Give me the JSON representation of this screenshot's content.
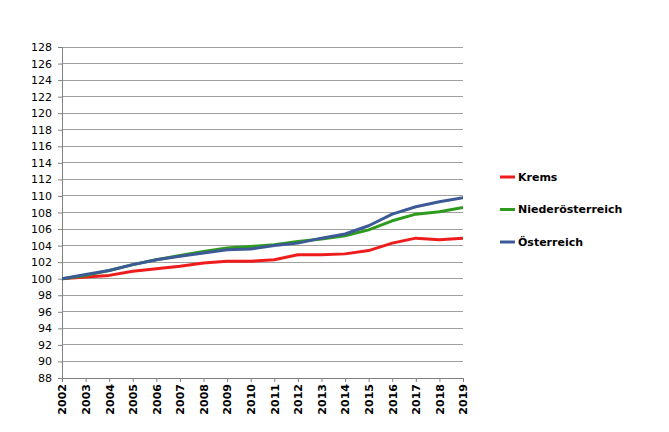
{
  "chart_data": {
    "type": "line",
    "categories": [
      "2002",
      "2003",
      "2004",
      "2005",
      "2006",
      "2007",
      "2008",
      "2009",
      "2010",
      "2011",
      "2012",
      "2013",
      "2014",
      "2015",
      "2016",
      "2017",
      "2018",
      "2019"
    ],
    "series": [
      {
        "name": "Krems",
        "color": "#ee1c1c",
        "values": [
          100,
          100.2,
          100.4,
          100.9,
          101.2,
          101.5,
          101.9,
          102.1,
          102.1,
          102.3,
          102.9,
          102.9,
          103.0,
          103.4,
          104.3,
          104.9,
          104.7,
          104.9
        ]
      },
      {
        "name": "Niederösterreich",
        "color": "#2e9a1e",
        "values": [
          100,
          100.4,
          101.0,
          101.7,
          102.3,
          102.8,
          103.3,
          103.7,
          103.9,
          104.1,
          104.5,
          104.8,
          105.2,
          105.9,
          107.0,
          107.8,
          108.1,
          108.6
        ]
      },
      {
        "name": "Österreich",
        "color": "#3c5b96",
        "values": [
          100,
          100.5,
          101.0,
          101.7,
          102.3,
          102.7,
          103.1,
          103.5,
          103.6,
          104.0,
          104.3,
          104.9,
          105.4,
          106.4,
          107.8,
          108.7,
          109.3,
          109.8
        ]
      }
    ],
    "ylim": [
      88,
      128
    ],
    "yticks": [
      88,
      90,
      92,
      94,
      96,
      98,
      100,
      102,
      104,
      106,
      108,
      110,
      112,
      114,
      116,
      118,
      120,
      122,
      124,
      126,
      128
    ],
    "grid": true,
    "legend": "right"
  }
}
